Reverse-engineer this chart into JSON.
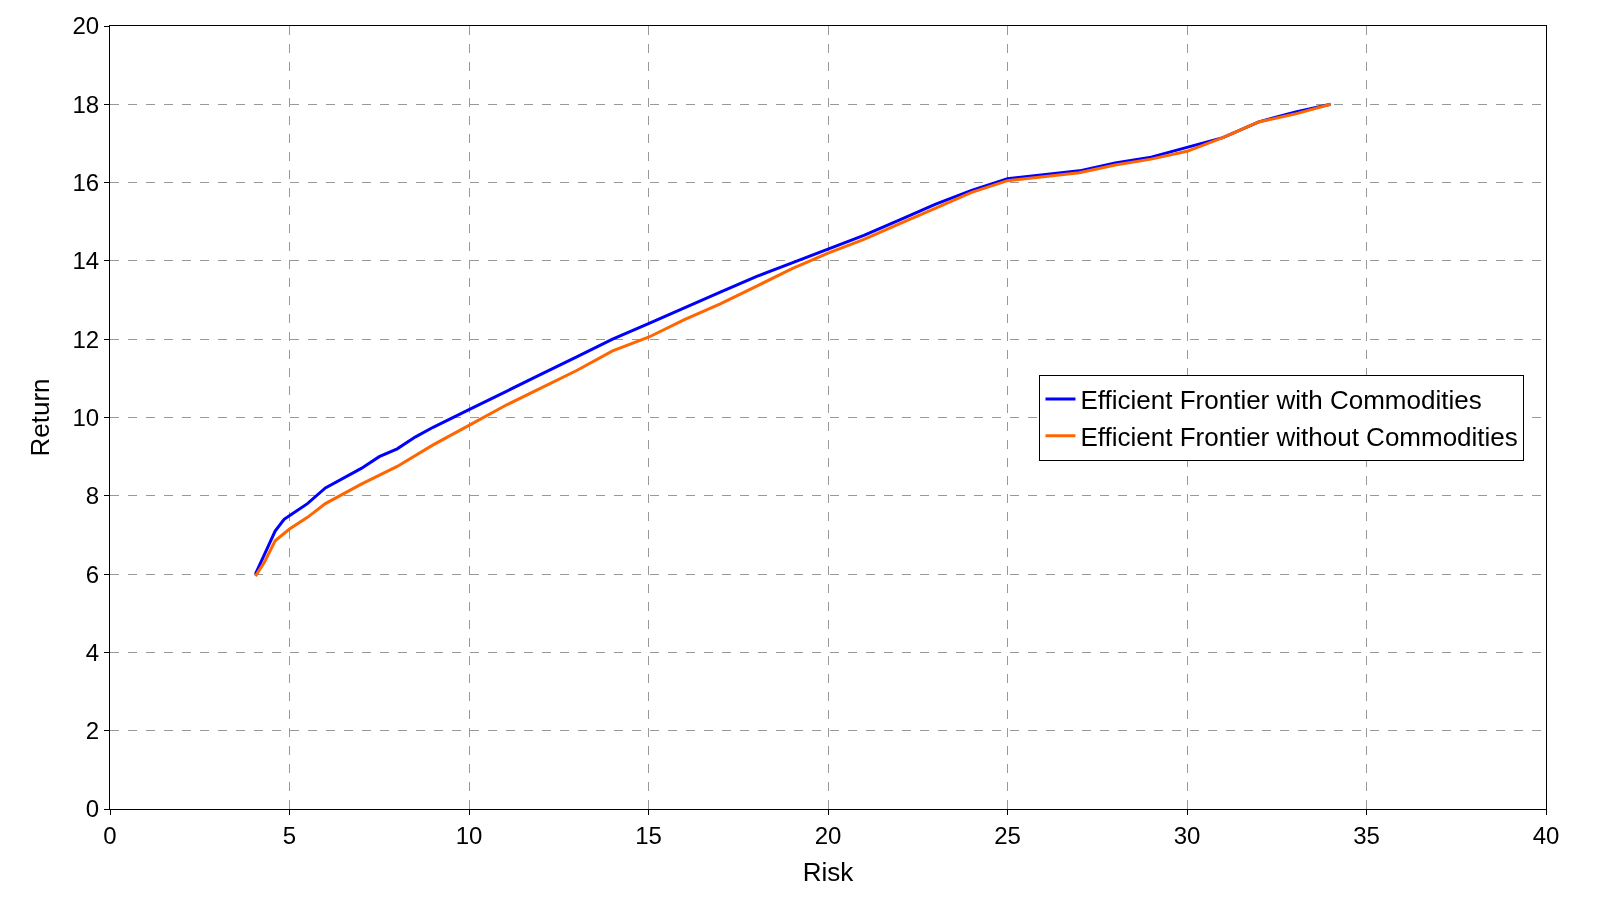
{
  "chart_data": {
    "type": "line",
    "xlabel": "Risk",
    "ylabel": "Return",
    "xlim": [
      0,
      40
    ],
    "xticks": [
      0,
      5,
      10,
      15,
      20,
      25,
      30,
      35,
      40
    ],
    "ylim": [
      0,
      20
    ],
    "yticks": [
      0,
      2,
      4,
      6,
      8,
      10,
      12,
      14,
      16,
      18,
      20
    ],
    "grid": true,
    "legend": "right",
    "marker": "none",
    "line_style": "solid",
    "series": [
      {
        "name": "Efficient Frontier with Commodities",
        "color": "#0000ff",
        "x": [
          4.05,
          4.3,
          4.6,
          4.85,
          5.5,
          6,
          7,
          7.5,
          8,
          8.5,
          9,
          10,
          11,
          12,
          13,
          14,
          15,
          16,
          17,
          18,
          19,
          20,
          21,
          22,
          23,
          24,
          25,
          26,
          27,
          28,
          29,
          30,
          31,
          32,
          33,
          34
        ],
        "values": [
          6.0,
          6.5,
          7.1,
          7.4,
          7.8,
          8.2,
          8.7,
          9.0,
          9.2,
          9.5,
          9.75,
          10.2,
          10.65,
          11.1,
          11.55,
          12.0,
          12.4,
          12.8,
          13.2,
          13.6,
          13.95,
          14.3,
          14.65,
          15.05,
          15.45,
          15.8,
          16.1,
          16.2,
          16.3,
          16.5,
          16.65,
          16.9,
          17.15,
          17.55,
          17.8,
          18.0
        ]
      },
      {
        "name": "Efficient Frontier without Commodities",
        "color": "#ff6600",
        "x": [
          4.05,
          4.3,
          4.6,
          5,
          5.5,
          6,
          7,
          8,
          9,
          10,
          11,
          12,
          13,
          14,
          15,
          16,
          17,
          18,
          19,
          20,
          21,
          22,
          23,
          24,
          25,
          26,
          27,
          28,
          29,
          30,
          31,
          32,
          33,
          34
        ],
        "values": [
          5.95,
          6.3,
          6.85,
          7.15,
          7.45,
          7.8,
          8.3,
          8.75,
          9.3,
          9.8,
          10.3,
          10.75,
          11.2,
          11.7,
          12.05,
          12.5,
          12.9,
          13.35,
          13.8,
          14.2,
          14.55,
          14.95,
          15.35,
          15.75,
          16.05,
          16.15,
          16.25,
          16.45,
          16.6,
          16.8,
          17.15,
          17.55,
          17.75,
          18.0
        ]
      }
    ]
  }
}
